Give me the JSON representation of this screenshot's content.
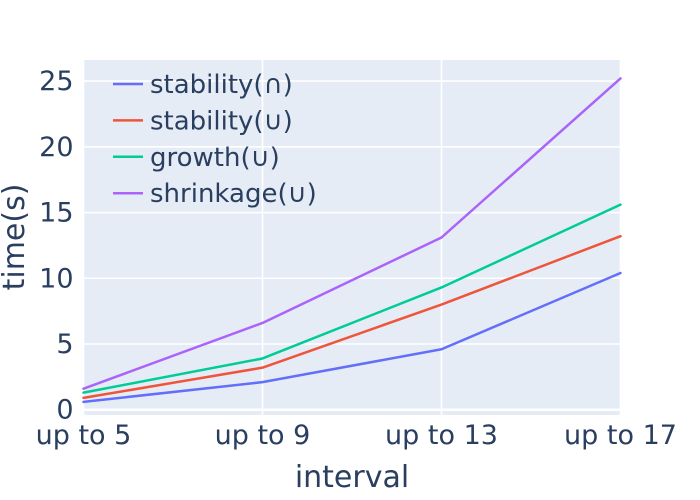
{
  "chart_data": {
    "type": "line",
    "title": "",
    "xlabel": "interval",
    "ylabel": "time(s)",
    "categories": [
      "up to 5",
      "up to 9",
      "up to 13",
      "up to 17"
    ],
    "series": [
      {
        "name": "stability(∩)",
        "color": "#636EFA",
        "values": [
          0.6,
          2.1,
          4.6,
          10.4
        ]
      },
      {
        "name": "stability(∪)",
        "color": "#EF553B",
        "values": [
          0.9,
          3.2,
          8.0,
          13.2
        ]
      },
      {
        "name": "growth(∪)",
        "color": "#00CC96",
        "values": [
          1.3,
          3.9,
          9.3,
          15.6
        ]
      },
      {
        "name": "shrinkage(∪)",
        "color": "#AB63FA",
        "values": [
          1.6,
          6.6,
          13.1,
          25.2
        ]
      }
    ],
    "yticks": [
      0,
      5,
      10,
      15,
      20,
      25
    ],
    "ylim": [
      -0.4,
      26.6
    ],
    "grid": true,
    "legend_position": "top-left",
    "colors": {
      "plot_background": "#E5ECF6",
      "gridline": "#FFFFFF",
      "text": "#2a3f5f"
    }
  }
}
